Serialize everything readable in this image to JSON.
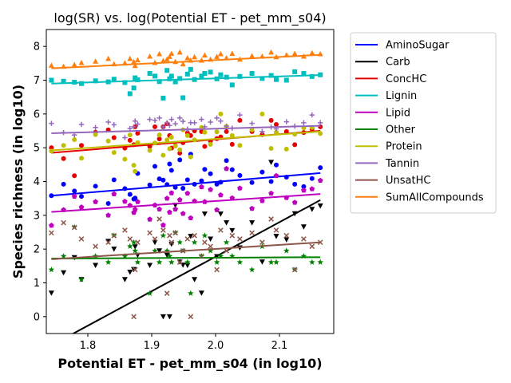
{
  "chart_data": {
    "type": "scatter",
    "title": "log(SR) vs. log(Potential ET - pet_mm_s04)",
    "xlabel": "Potential ET - pet_mm_s04 (in log10)",
    "ylabel": "Species richness (in log10)",
    "xlim": [
      1.735,
      2.185
    ],
    "ylim": [
      -0.5,
      8.5
    ],
    "x_ticks": [
      1.8,
      1.9,
      2.0,
      2.1
    ],
    "y_ticks": [
      0,
      1,
      2,
      3,
      4,
      5,
      6,
      7,
      8
    ],
    "x_tick_labels": [
      "1.8",
      "1.9",
      "2.0",
      "2.1"
    ],
    "y_tick_labels": [
      "0",
      "1",
      "2",
      "3",
      "4",
      "5",
      "6",
      "7",
      "8"
    ],
    "legend_position": "outside-right",
    "x": [
      1.743,
      1.762,
      1.779,
      1.79,
      1.812,
      1.832,
      1.841,
      1.858,
      1.866,
      1.872,
      1.874,
      1.878,
      1.897,
      1.905,
      1.912,
      1.918,
      1.924,
      1.928,
      1.931,
      1.937,
      1.944,
      1.949,
      1.956,
      1.961,
      1.967,
      1.978,
      1.983,
      1.992,
      2.002,
      2.008,
      2.017,
      2.026,
      2.038,
      2.057,
      2.073,
      2.087,
      2.095,
      2.111,
      2.124,
      2.138,
      2.151,
      2.164
    ],
    "series": [
      {
        "name": "AminoSugar",
        "color": "#0000ff",
        "marker": "circle",
        "fit": [
          3.58,
          4.25
        ],
        "y": [
          3.58,
          3.92,
          3.72,
          3.56,
          3.86,
          3.35,
          4.05,
          3.79,
          3.62,
          3.48,
          3.51,
          4.24,
          3.9,
          4.45,
          4.08,
          4.04,
          3.91,
          4.52,
          4.33,
          3.83,
          4.64,
          3.8,
          4.05,
          4.81,
          3.92,
          4.02,
          4.36,
          4.23,
          3.92,
          3.98,
          4.62,
          4.35,
          4.18,
          3.97,
          4.28,
          4.0,
          4.49,
          4.13,
          3.92,
          3.85,
          4.09,
          4.41
        ]
      },
      {
        "name": "Carb",
        "color": "#000000",
        "marker": "triangle-down",
        "fit": [
          -0.85,
          3.45
        ],
        "y": [
          0.7,
          1.3,
          1.75,
          1.1,
          1.52,
          2.23,
          2.0,
          1.1,
          1.32,
          1.4,
          2.07,
          1.82,
          1.52,
          2.2,
          1.95,
          0.0,
          1.82,
          0.0,
          2.15,
          3.3,
          1.62,
          1.53,
          1.52,
          2.38,
          1.1,
          0.7,
          3.04,
          2.3,
          1.78,
          3.04,
          2.78,
          2.55,
          2.04,
          2.78,
          1.62,
          4.57,
          2.38,
          2.28,
          3.05,
          2.66,
          3.18,
          3.28
        ]
      },
      {
        "name": "ConcHC",
        "color": "#e60000",
        "marker": "circle",
        "fit": [
          4.85,
          5.5
        ],
        "y": [
          5.0,
          4.68,
          4.17,
          5.07,
          5.46,
          5.53,
          5.3,
          4.99,
          5.22,
          5.09,
          5.62,
          5.43,
          5.04,
          5.62,
          5.26,
          5.62,
          5.71,
          5.36,
          4.99,
          5.06,
          4.84,
          5.15,
          5.44,
          5.36,
          5.5,
          5.48,
          5.04,
          5.2,
          5.27,
          5.32,
          5.48,
          5.1,
          5.81,
          5.48,
          5.39,
          5.81,
          5.69,
          5.48,
          5.09,
          5.45,
          5.55,
          5.62
        ]
      },
      {
        "name": "Lignin",
        "color": "#00bfbf",
        "marker": "square",
        "fit": [
          6.9,
          7.15
        ],
        "y": [
          7.0,
          6.97,
          6.94,
          6.9,
          6.98,
          6.95,
          7.03,
          6.93,
          6.6,
          6.77,
          7.07,
          7.01,
          7.2,
          7.12,
          6.96,
          6.47,
          7.29,
          7.04,
          7.12,
          6.95,
          7.05,
          6.48,
          7.18,
          7.32,
          7.02,
          7.12,
          7.2,
          7.24,
          7.04,
          7.16,
          7.09,
          6.86,
          7.11,
          7.2,
          7.05,
          7.14,
          7.02,
          7.0,
          7.25,
          7.2,
          7.11,
          7.16
        ]
      },
      {
        "name": "Lipid",
        "color": "#bf00bf",
        "marker": "pentagon",
        "fit": [
          3.1,
          3.63
        ],
        "y": [
          2.7,
          3.16,
          3.56,
          3.24,
          3.4,
          3.0,
          3.63,
          3.41,
          3.29,
          3.08,
          3.17,
          3.4,
          2.88,
          3.3,
          3.18,
          2.71,
          3.5,
          3.09,
          3.66,
          3.18,
          3.46,
          3.05,
          3.65,
          2.92,
          3.42,
          3.84,
          3.4,
          3.76,
          3.16,
          3.6,
          4.38,
          3.51,
          3.8,
          3.2,
          3.43,
          3.65,
          4.17,
          3.52,
          3.38,
          3.74,
          3.78,
          4.03
        ]
      },
      {
        "name": "Other",
        "color": "#008000",
        "marker": "star",
        "fit": [
          1.72,
          1.76
        ],
        "y": [
          1.39,
          1.79,
          2.65,
          1.1,
          1.79,
          1.61,
          2.4,
          1.79,
          2.08,
          2.2,
          1.95,
          1.61,
          0.69,
          1.95,
          1.61,
          2.4,
          1.95,
          1.79,
          1.61,
          2.48,
          2.2,
          1.95,
          1.61,
          0.69,
          2.2,
          1.79,
          2.4,
          1.95,
          1.61,
          1.79,
          2.2,
          1.79,
          1.61,
          1.39,
          2.08,
          1.61,
          1.61,
          1.95,
          1.39,
          1.79,
          1.61,
          1.61
        ]
      },
      {
        "name": "Protein",
        "color": "#bfbf00",
        "marker": "circle",
        "fit": [
          4.92,
          5.48
        ],
        "y": [
          4.9,
          5.07,
          5.24,
          4.69,
          5.39,
          5.2,
          4.86,
          4.66,
          5.38,
          4.48,
          4.3,
          5.15,
          4.92,
          5.14,
          5.38,
          4.78,
          5.23,
          4.97,
          5.31,
          5.05,
          4.94,
          5.53,
          5.36,
          4.73,
          5.23,
          5.6,
          5.46,
          5.1,
          5.47,
          6.0,
          5.63,
          5.36,
          5.07,
          5.53,
          6.0,
          4.98,
          5.46,
          4.96,
          5.4,
          5.59,
          5.6,
          5.42
        ]
      },
      {
        "name": "Tannin",
        "color": "#9467bd",
        "marker": "plus",
        "fit": [
          5.43,
          5.65
        ],
        "y": [
          5.72,
          5.45,
          5.38,
          5.69,
          5.6,
          5.76,
          5.68,
          5.3,
          5.57,
          5.62,
          5.79,
          5.7,
          5.84,
          5.81,
          5.88,
          5.62,
          5.74,
          5.66,
          5.84,
          5.71,
          5.88,
          5.78,
          5.55,
          5.74,
          5.74,
          5.84,
          5.62,
          5.76,
          5.88,
          5.79,
          5.64,
          5.58,
          5.97,
          5.72,
          5.48,
          5.61,
          5.56,
          5.77,
          5.64,
          5.74,
          5.97,
          5.74
        ]
      },
      {
        "name": "UnsatHC",
        "color": "#8c564b",
        "marker": "x",
        "fit": [
          1.7,
          2.2
        ],
        "y": [
          2.48,
          2.78,
          2.64,
          2.3,
          2.08,
          2.2,
          2.4,
          2.56,
          2.3,
          0.0,
          1.39,
          2.2,
          2.48,
          2.3,
          2.89,
          2.56,
          0.69,
          2.4,
          2.2,
          2.48,
          1.61,
          1.95,
          2.3,
          0.0,
          2.4,
          1.79,
          2.2,
          2.08,
          1.39,
          2.56,
          1.95,
          2.4,
          2.3,
          2.48,
          2.2,
          2.89,
          2.56,
          2.4,
          1.39,
          2.3,
          2.08,
          2.2
        ]
      },
      {
        "name": "SumAllCompounds",
        "color": "#ff7f0e",
        "marker": "triangle-up",
        "fit": [
          7.35,
          7.75
        ],
        "y": [
          7.44,
          7.41,
          7.46,
          7.52,
          7.56,
          7.64,
          7.48,
          7.51,
          7.64,
          7.55,
          7.43,
          7.6,
          7.71,
          7.52,
          7.78,
          7.58,
          7.62,
          7.7,
          7.79,
          7.55,
          7.83,
          7.48,
          7.66,
          7.59,
          7.69,
          7.59,
          7.74,
          7.62,
          7.7,
          7.78,
          7.66,
          7.79,
          7.62,
          7.72,
          7.71,
          7.83,
          7.69,
          7.75,
          7.79,
          7.71,
          7.81,
          7.78
        ]
      }
    ]
  }
}
